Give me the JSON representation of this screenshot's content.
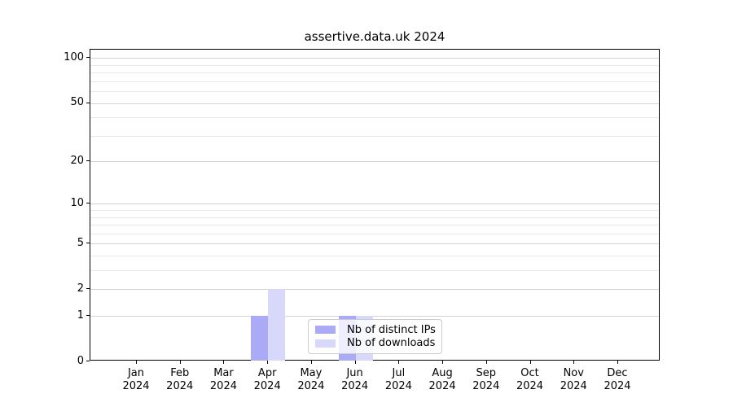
{
  "chart_data": {
    "type": "bar",
    "title": "assertive.data.uk 2024",
    "categories": [
      {
        "month": "Jan",
        "year": "2024"
      },
      {
        "month": "Feb",
        "year": "2024"
      },
      {
        "month": "Mar",
        "year": "2024"
      },
      {
        "month": "Apr",
        "year": "2024"
      },
      {
        "month": "May",
        "year": "2024"
      },
      {
        "month": "Jun",
        "year": "2024"
      },
      {
        "month": "Jul",
        "year": "2024"
      },
      {
        "month": "Aug",
        "year": "2024"
      },
      {
        "month": "Sep",
        "year": "2024"
      },
      {
        "month": "Oct",
        "year": "2024"
      },
      {
        "month": "Nov",
        "year": "2024"
      },
      {
        "month": "Dec",
        "year": "2024"
      }
    ],
    "series": [
      {
        "name": "Nb of distinct IPs",
        "color": "#aaaaf7",
        "values": [
          0,
          0,
          0,
          1,
          0,
          1,
          0,
          0,
          0,
          0,
          0,
          0
        ]
      },
      {
        "name": "Nb of downloads",
        "color": "#d8d8fa",
        "values": [
          0,
          0,
          0,
          2,
          0,
          1,
          0,
          0,
          0,
          0,
          0,
          0
        ]
      }
    ],
    "y_ticks": [
      0,
      1,
      2,
      5,
      10,
      20,
      50,
      100
    ],
    "y_minor_ticks": [
      3,
      4,
      6,
      7,
      8,
      9,
      30,
      40,
      60,
      70,
      80,
      90
    ],
    "scale": "log1p",
    "ylim": [
      0,
      114
    ],
    "grid": "horizontal",
    "legend_position": "lower-center",
    "colors": {
      "grid_major": "#d3d3d3",
      "grid_minor": "#eaeaea",
      "spine": "#000000",
      "text": "#000000",
      "legend_border": "#cccccc"
    }
  }
}
